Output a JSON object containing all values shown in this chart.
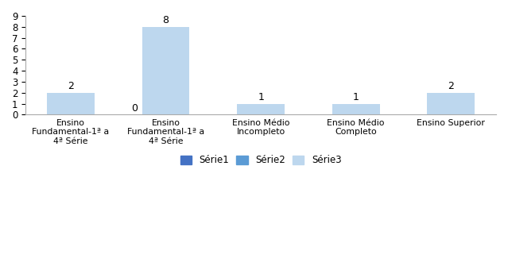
{
  "categories": [
    "Ensino\nFundamental-1ª a\n4ª Série",
    "Ensino\nFundamental-1ª a\n4ª Série",
    "Ensino Médio\nIncompleto",
    "Ensino Médio\nCompleto",
    "Ensino Superior"
  ],
  "values": [
    2,
    8,
    1,
    1,
    2
  ],
  "zero_label_index": 1,
  "zero_label_value": 0,
  "bar_color": "#BDD7EE",
  "color_serie1": "#4472C4",
  "color_serie2": "#5B9BD5",
  "color_serie3": "#BDD7EE",
  "ylim": [
    0,
    9
  ],
  "yticks": [
    0,
    1,
    2,
    3,
    4,
    5,
    6,
    7,
    8,
    9
  ],
  "legend_labels": [
    "Série1",
    "Série2",
    "Série3"
  ],
  "bar_width": 0.5,
  "background_color": "#ffffff",
  "label_fontsize": 9,
  "tick_fontsize": 8.5,
  "spine_color": "#AAAAAA"
}
